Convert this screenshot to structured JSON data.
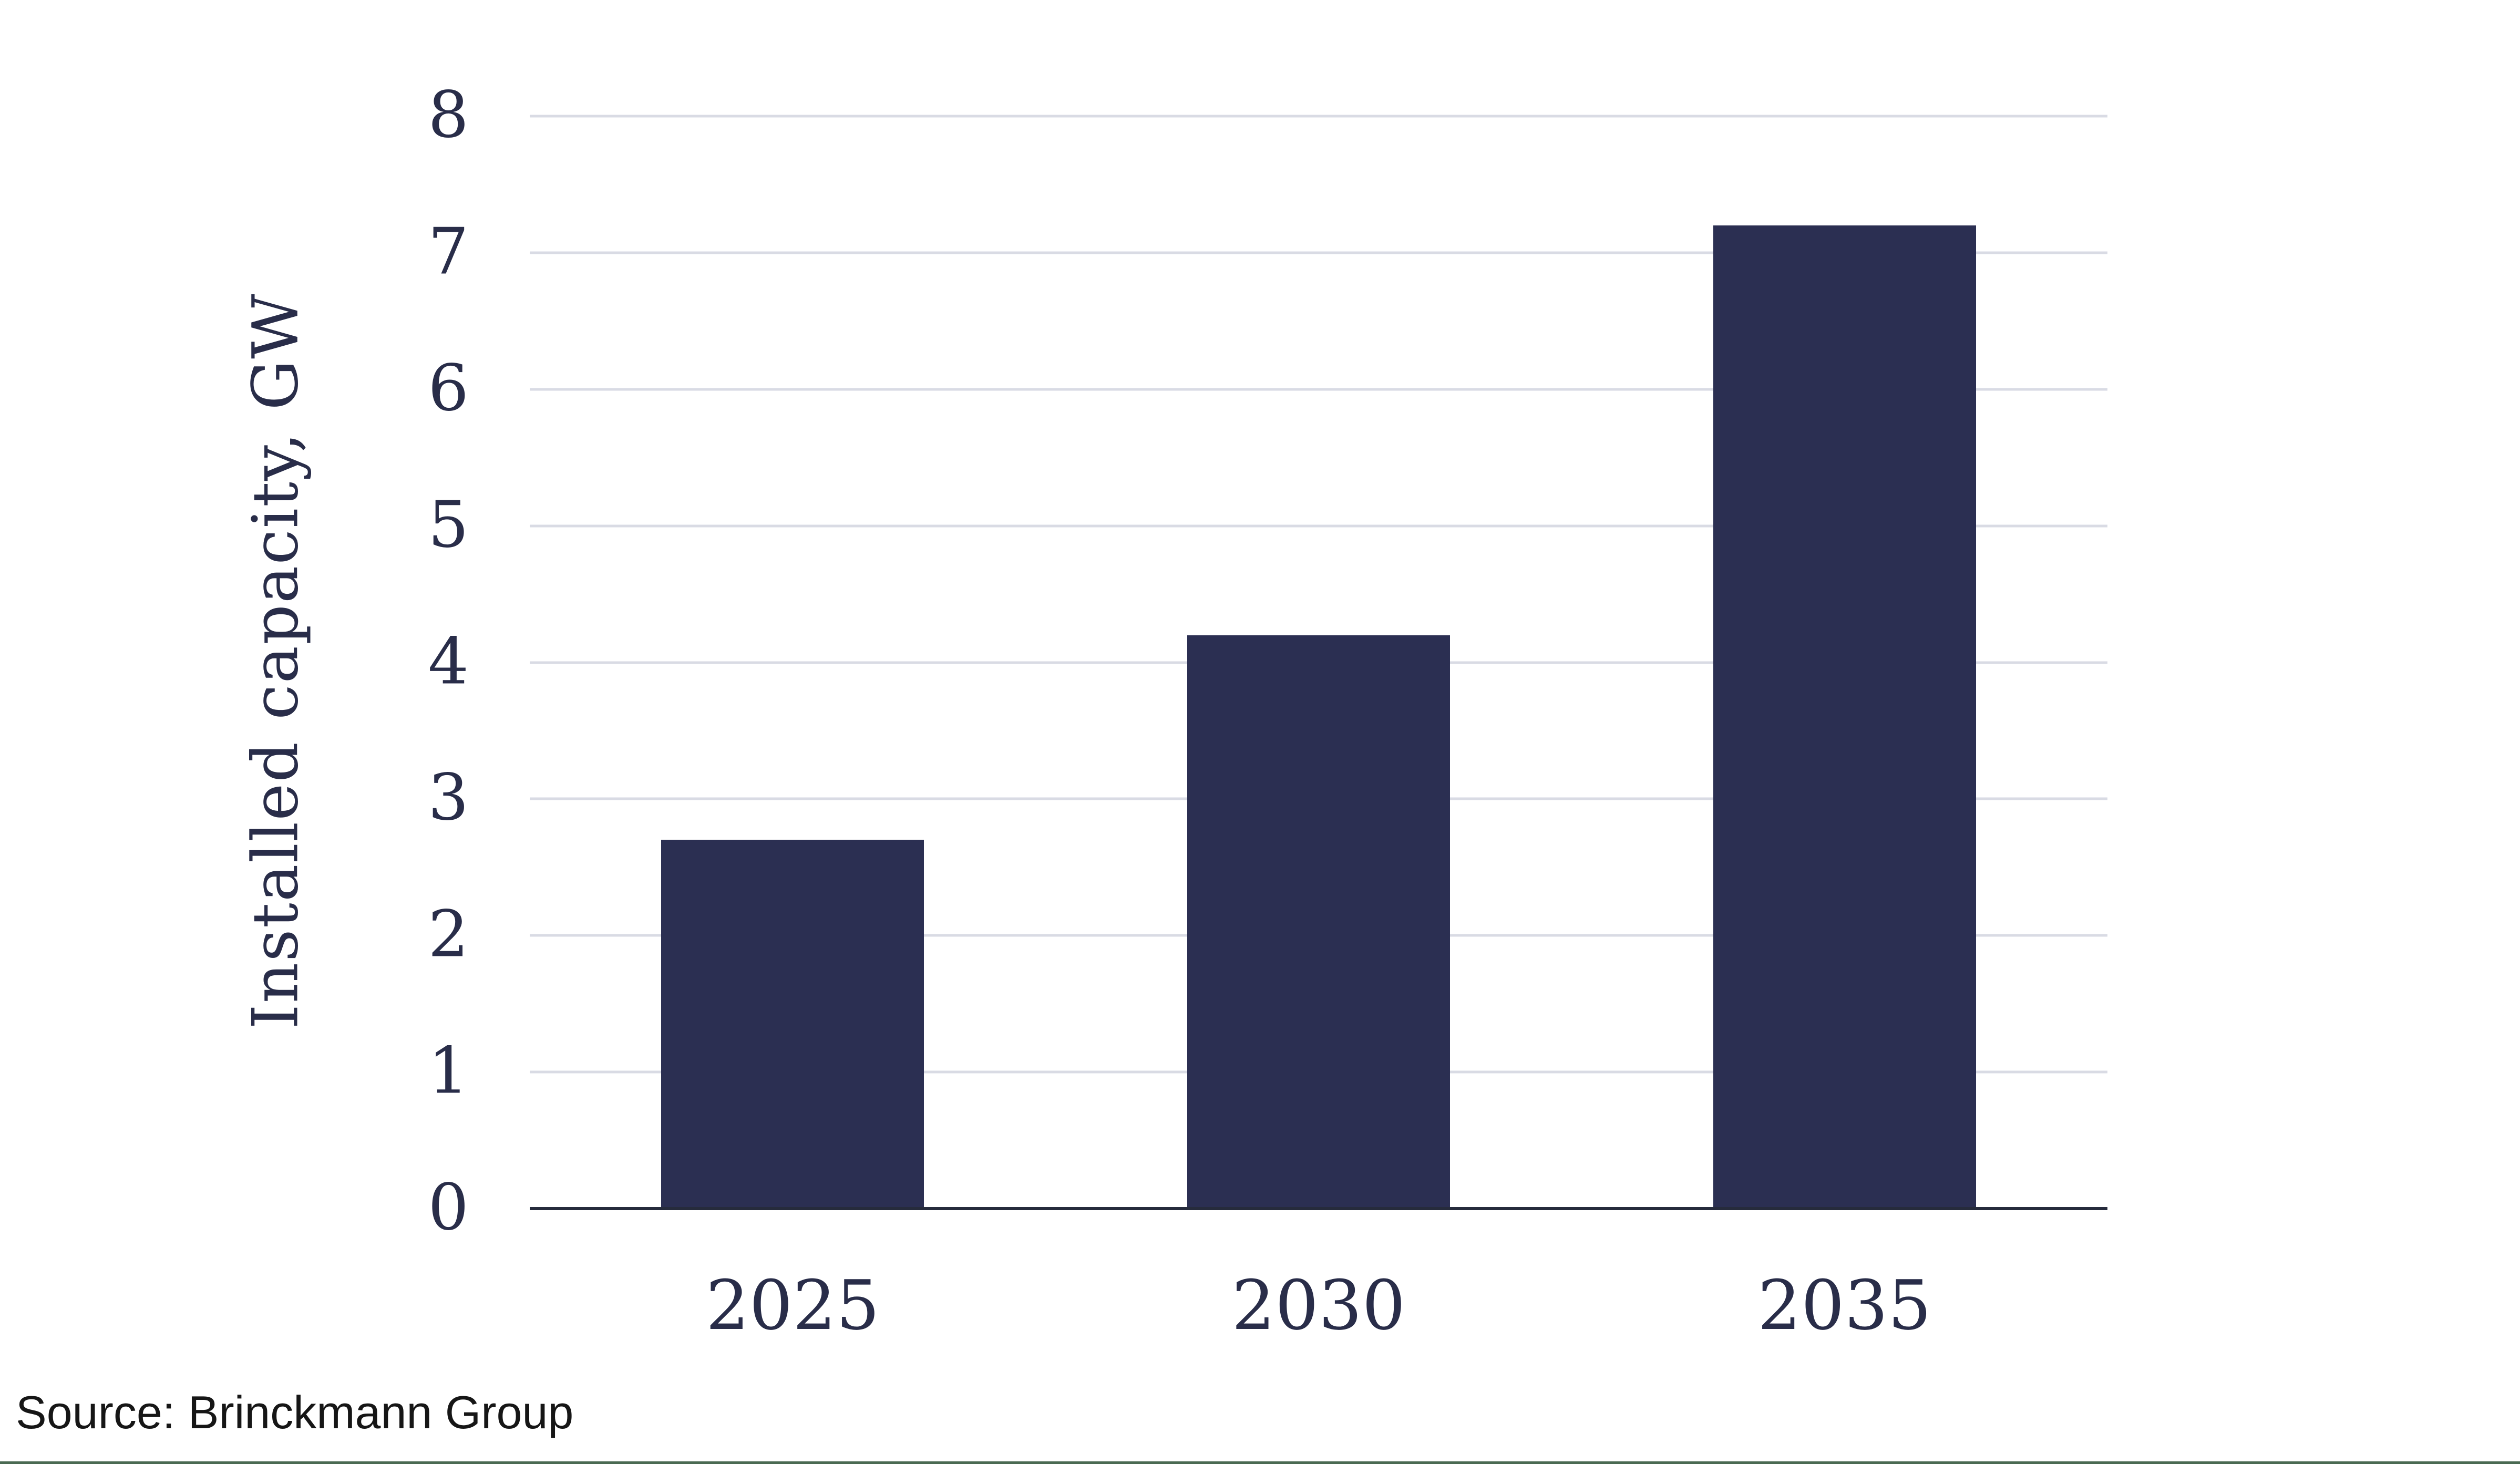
{
  "chart_data": {
    "type": "bar",
    "categories": [
      "2025",
      "2030",
      "2035"
    ],
    "values": [
      2.7,
      4.2,
      7.2
    ],
    "series": [
      {
        "name": "Installed capacity",
        "values": [
          2.7,
          4.2,
          7.2
        ]
      }
    ],
    "title": "",
    "xlabel": "",
    "ylabel": "Installed capacity, GW",
    "ylim": [
      0,
      8
    ],
    "yticks": [
      0,
      1,
      2,
      3,
      4,
      5,
      6,
      7,
      8
    ],
    "grid": "horizontal-only",
    "legend": "none",
    "bar_width_fraction": 0.5
  },
  "source": {
    "label": "Source: Brinckmann Group"
  },
  "colors": {
    "bar": "#2B2F52",
    "text": "#292D49",
    "gridline": "#D9DBE4",
    "axis_line": "#262B3C",
    "source_text": "#161616",
    "bottom_border": "#4A6A52",
    "background": "#FFFFFF"
  }
}
